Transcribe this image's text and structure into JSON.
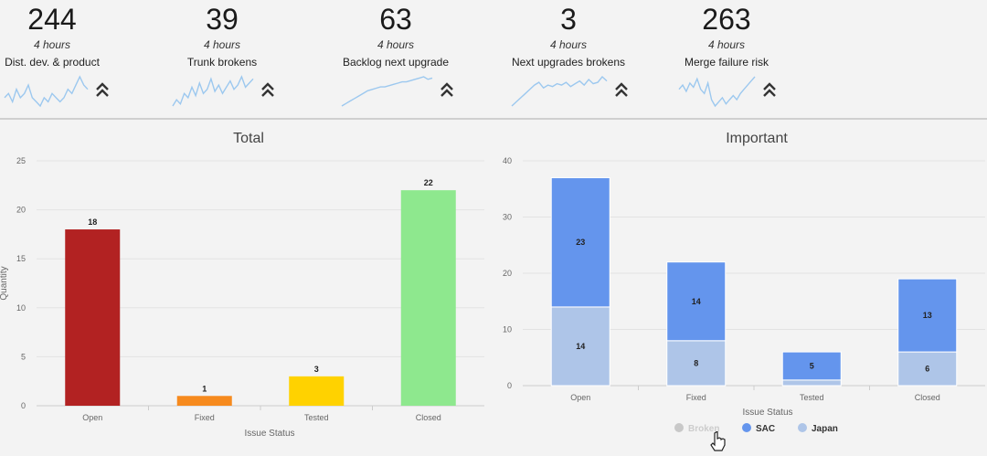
{
  "kpis": [
    {
      "value": "244",
      "period": "4 hours",
      "label": "Dist. dev. & product",
      "trend_icon": "double-chevron-up-icon",
      "sparkline": [
        7,
        8,
        6,
        9,
        7,
        8,
        10,
        7,
        6,
        5,
        7,
        6,
        8,
        7,
        6,
        7,
        9,
        8,
        10,
        12,
        10,
        9
      ]
    },
    {
      "value": "39",
      "period": "4 hours",
      "label": "Trunk brokens",
      "trend_icon": "double-chevron-up-icon",
      "sparkline": [
        3,
        6,
        4,
        9,
        7,
        12,
        8,
        14,
        9,
        11,
        16,
        10,
        13,
        9,
        12,
        15,
        11,
        13,
        17,
        12,
        14,
        16
      ]
    },
    {
      "value": "63",
      "period": "4 hours",
      "label": "Backlog next upgrade",
      "trend_icon": "double-chevron-up-icon",
      "sparkline": [
        1,
        3,
        5,
        7,
        9,
        11,
        13,
        14,
        15,
        16,
        16,
        17,
        18,
        19,
        20,
        20,
        21,
        22,
        23,
        24,
        22,
        23
      ]
    },
    {
      "value": "3",
      "period": "4 hours",
      "label": "Next upgrades brokens",
      "trend_icon": "double-chevron-up-icon",
      "sparkline": [
        1,
        4,
        7,
        10,
        13,
        16,
        18,
        14,
        16,
        15,
        17,
        16,
        18,
        15,
        17,
        19,
        16,
        20,
        17,
        18,
        22,
        19
      ]
    },
    {
      "value": "263",
      "period": "4 hours",
      "label": "Merge failure risk",
      "trend_icon": "double-chevron-up-icon",
      "sparkline": [
        14,
        16,
        13,
        17,
        15,
        19,
        14,
        12,
        17,
        9,
        6,
        8,
        10,
        7,
        9,
        11,
        9,
        12,
        14,
        16,
        18,
        20
      ]
    }
  ],
  "colors": {
    "sparkline": "#9cc8ef",
    "grid": "#e3e3e3",
    "axis": "#cccccc"
  },
  "chart_data": [
    {
      "type": "bar",
      "title": "Total",
      "xlabel": "Issue Status",
      "ylabel": "Quantity",
      "categories": [
        "Open",
        "Fixed",
        "Tested",
        "Closed"
      ],
      "values": [
        18,
        1,
        3,
        22
      ],
      "colors": [
        "#b22222",
        "#f68a1e",
        "#ffd200",
        "#8ee88e"
      ],
      "ylim": [
        0,
        25
      ],
      "yticks": [
        0,
        5,
        10,
        15,
        20,
        25
      ],
      "grid": true
    },
    {
      "type": "bar",
      "stacked": true,
      "title": "Important",
      "xlabel": "Issue Status",
      "ylabel": "",
      "categories": [
        "Open",
        "Fixed",
        "Tested",
        "Closed"
      ],
      "series": [
        {
          "name": "Japan",
          "values": [
            14,
            8,
            1,
            6
          ],
          "color": "#aec5e8",
          "labels": [
            "14",
            "8",
            "",
            "6"
          ]
        },
        {
          "name": "SAC",
          "values": [
            23,
            14,
            5,
            13
          ],
          "color": "#6495ed",
          "labels": [
            "23",
            "14",
            "5",
            "13"
          ]
        }
      ],
      "ylim": [
        0,
        40
      ],
      "yticks": [
        0,
        10,
        20,
        30,
        40
      ],
      "grid": true,
      "legend": {
        "placement": "bottom",
        "items": [
          {
            "name": "Broken",
            "color": "#c8c8c8",
            "text_color": "#cccccc",
            "state": "hidden"
          },
          {
            "name": "SAC",
            "color": "#6495ed",
            "text_color": "#333333",
            "state": "visible"
          },
          {
            "name": "Japan",
            "color": "#aec5e8",
            "text_color": "#333333",
            "state": "visible"
          }
        ]
      }
    }
  ]
}
